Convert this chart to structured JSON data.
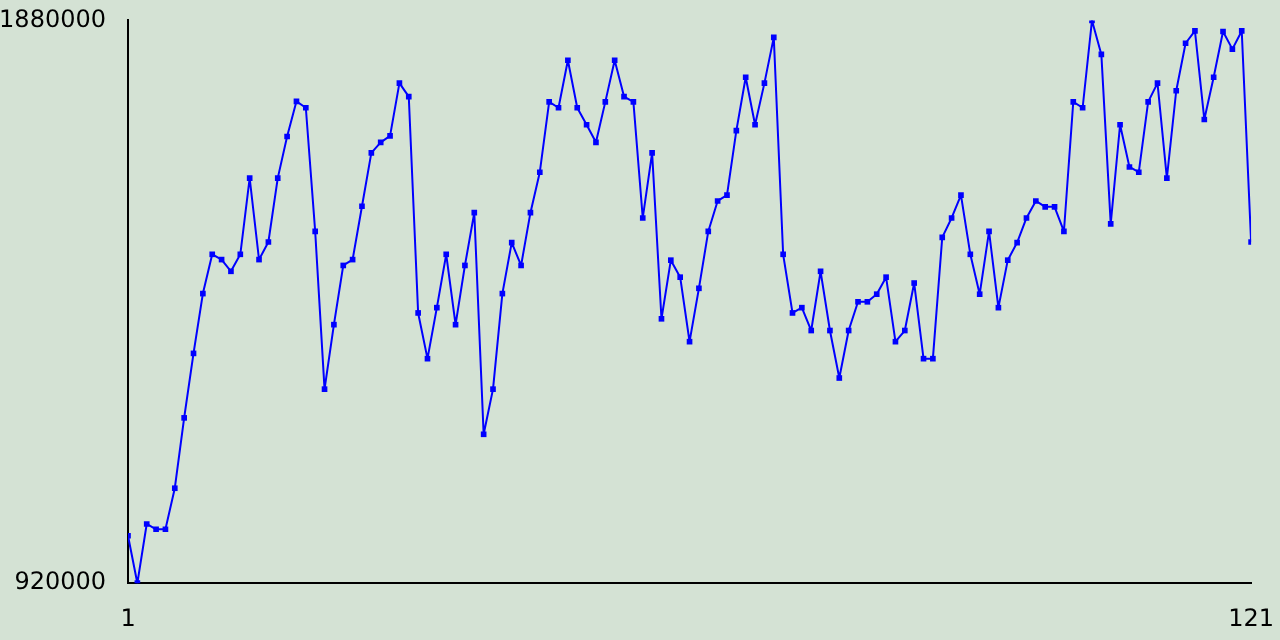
{
  "chart_data": {
    "type": "line",
    "x": [
      1,
      2,
      3,
      4,
      5,
      6,
      7,
      8,
      9,
      10,
      11,
      12,
      13,
      14,
      15,
      16,
      17,
      18,
      19,
      20,
      21,
      22,
      23,
      24,
      25,
      26,
      27,
      28,
      29,
      30,
      31,
      32,
      33,
      34,
      35,
      36,
      37,
      38,
      39,
      40,
      41,
      42,
      43,
      44,
      45,
      46,
      47,
      48,
      49,
      50,
      51,
      52,
      53,
      54,
      55,
      56,
      57,
      58,
      59,
      60,
      61,
      62,
      63,
      64,
      65,
      66,
      67,
      68,
      69,
      70,
      71,
      72,
      73,
      74,
      75,
      76,
      77,
      78,
      79,
      80,
      81,
      82,
      83,
      84,
      85,
      86,
      87,
      88,
      89,
      90,
      91,
      92,
      93,
      94,
      95,
      96,
      97,
      98,
      99,
      100,
      101,
      102,
      103,
      104,
      105,
      106,
      107,
      108,
      109,
      110,
      111,
      112,
      113,
      114,
      115,
      116,
      117,
      118,
      119,
      120,
      121
    ],
    "series": [
      {
        "color": "#0000ff",
        "values": [
          1001000,
          920000,
          1021000,
          1012000,
          1012000,
          1082000,
          1202000,
          1312000,
          1414000,
          1481000,
          1472000,
          1452000,
          1481000,
          1611000,
          1472000,
          1502000,
          1611000,
          1682000,
          1742000,
          1731000,
          1520000,
          1251000,
          1361000,
          1462000,
          1472000,
          1563000,
          1654000,
          1672000,
          1683000,
          1773000,
          1750000,
          1381000,
          1303000,
          1390000,
          1481000,
          1361000,
          1462000,
          1552000,
          1174000,
          1251000,
          1414000,
          1501000,
          1462000,
          1552000,
          1621000,
          1741000,
          1731000,
          1812000,
          1731000,
          1702000,
          1672000,
          1741000,
          1812000,
          1750000,
          1741000,
          1543000,
          1654000,
          1371000,
          1471000,
          1442000,
          1332000,
          1423000,
          1520000,
          1572000,
          1582000,
          1692000,
          1783000,
          1702000,
          1773000,
          1851000,
          1481000,
          1381000,
          1390000,
          1351000,
          1452000,
          1351000,
          1270000,
          1351000,
          1400000,
          1400000,
          1413000,
          1442000,
          1332000,
          1351000,
          1432000,
          1303000,
          1303000,
          1510000,
          1543000,
          1582000,
          1481000,
          1413000,
          1520000,
          1390000,
          1471000,
          1501000,
          1543000,
          1572000,
          1562000,
          1562000,
          1520000,
          1741000,
          1731000,
          1880000,
          1822000,
          1533000,
          1702000,
          1630000,
          1621000,
          1741000,
          1773000,
          1611000,
          1760000,
          1841000,
          1862000,
          1711000,
          1783000,
          1861000,
          1831000,
          1862000,
          1502000
        ]
      }
    ],
    "xlim": [
      1,
      121
    ],
    "xticks": [
      1,
      121
    ],
    "ylim": [
      920000,
      1880000
    ],
    "yticks": [
      920000,
      1880000
    ],
    "grid": false,
    "legend": false,
    "marker": "square",
    "line_style": "solid"
  }
}
